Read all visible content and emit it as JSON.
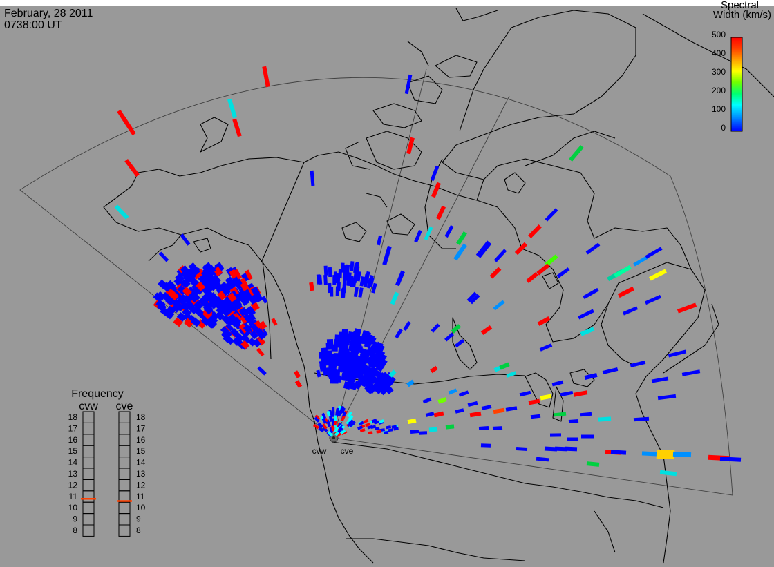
{
  "header": {
    "date": "February, 28 2011",
    "time": "0738:00 UT"
  },
  "colorbar": {
    "title_line1": "Spectral",
    "title_line2": "Width (km/s)",
    "ticks": [
      "500",
      "400",
      "300",
      "200",
      "100",
      "0"
    ],
    "colors": [
      "#0000ff",
      "#0090ff",
      "#00ffff",
      "#00ff70",
      "#70ff00",
      "#ffff00",
      "#ffa000",
      "#ff4000",
      "#ff0000"
    ]
  },
  "frequency_panel": {
    "title": "Frequency",
    "radars": [
      {
        "name": "cvw",
        "marker_value": 10.8
      },
      {
        "name": "cve",
        "marker_value": 10.6
      }
    ],
    "scale": [
      "18",
      "17",
      "16",
      "15",
      "14",
      "13",
      "12",
      "11",
      "10",
      "9",
      "8"
    ],
    "marker_color": "#ff4000"
  },
  "stations": {
    "west": "cvw",
    "east": "cve"
  },
  "colors": {
    "background": "#999999",
    "map_lines": "#000000",
    "fov_outline": "#404040",
    "red": "#ff0000",
    "blue": "#0000ff",
    "cyan": "#00ffff",
    "green": "#00ff00",
    "yellow": "#ffff00"
  }
}
